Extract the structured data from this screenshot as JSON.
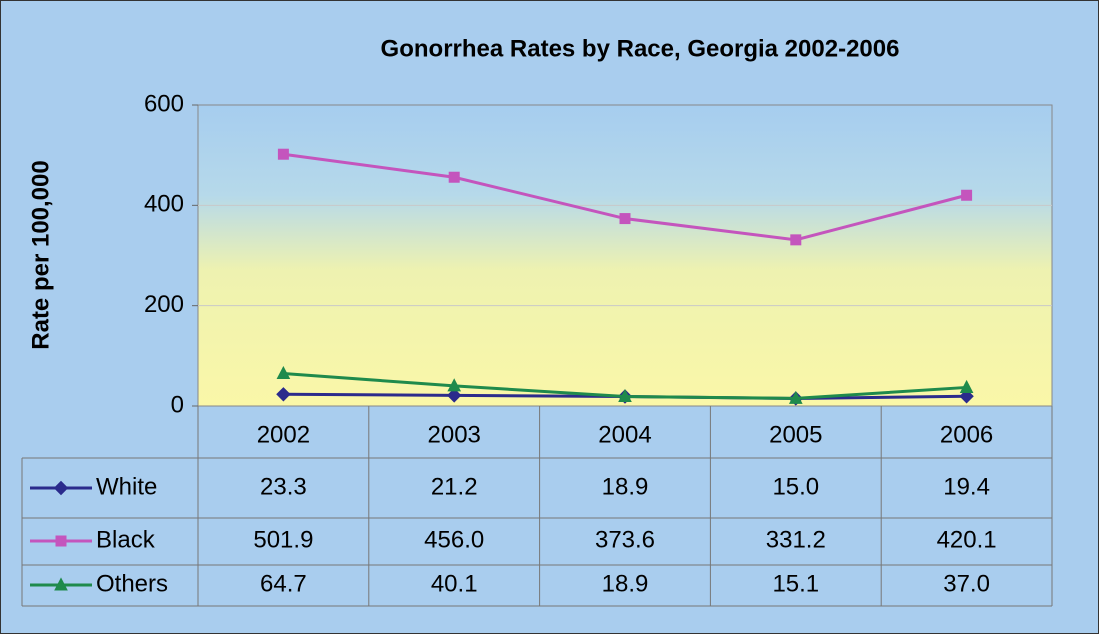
{
  "chart_data": {
    "type": "line",
    "title": "Gonorrhea  Rates by Race, Georgia 2002-2006",
    "y_label": "Rate per 100,000",
    "categories": [
      "2002",
      "2003",
      "2004",
      "2005",
      "2006"
    ],
    "series": [
      {
        "name": "White",
        "color": "#2b2b8c",
        "marker": "diamond",
        "values": [
          23.3,
          21.2,
          18.9,
          15.0,
          19.4
        ],
        "value_labels": [
          "23.3",
          "21.2",
          "18.9",
          "15.0",
          "19.4"
        ]
      },
      {
        "name": "Black",
        "color": "#c455bd",
        "marker": "square",
        "values": [
          501.9,
          456.0,
          373.6,
          331.2,
          420.1
        ],
        "value_labels": [
          "501.9",
          "456.0",
          "373.6",
          "331.2",
          "420.1"
        ]
      },
      {
        "name": "Others",
        "color": "#1f8a4c",
        "marker": "triangle",
        "values": [
          64.7,
          40.1,
          18.9,
          15.1,
          37.0
        ],
        "value_labels": [
          "64.7",
          "40.1",
          "18.9",
          "15.1",
          "37.0"
        ]
      }
    ],
    "ylim": [
      0,
      600
    ],
    "yticks": [
      0,
      200,
      400,
      600
    ],
    "grid": true
  }
}
